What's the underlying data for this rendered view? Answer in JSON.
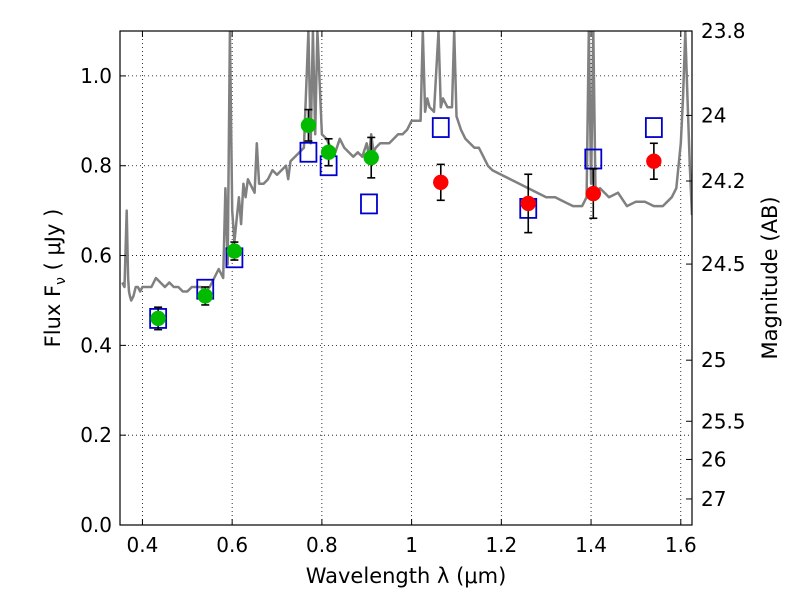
{
  "chart_data": {
    "type": "scatter",
    "title": "",
    "xlabel": "Wavelength  λ (μm)",
    "ylabel": "Flux  F",
    "ylabel_sub": "ν",
    "ylabel_units": "  ( μJy )",
    "y2label": "Magnitude (AB)",
    "xlim": [
      0.35,
      1.625
    ],
    "ylim": [
      0.0,
      1.1
    ],
    "grid": true,
    "x_ticks": [
      {
        "value": 0.4,
        "label": "0.4"
      },
      {
        "value": 0.6,
        "label": "0.6"
      },
      {
        "value": 0.8,
        "label": "0.8"
      },
      {
        "value": 1.0,
        "label": "1"
      },
      {
        "value": 1.2,
        "label": "1.2"
      },
      {
        "value": 1.4,
        "label": "1.4"
      },
      {
        "value": 1.6,
        "label": "1.6"
      }
    ],
    "y_ticks": [
      {
        "value": 0.0,
        "label": "0.0"
      },
      {
        "value": 0.2,
        "label": "0.2"
      },
      {
        "value": 0.4,
        "label": "0.4"
      },
      {
        "value": 0.6,
        "label": "0.6"
      },
      {
        "value": 0.8,
        "label": "0.8"
      },
      {
        "value": 1.0,
        "label": "1.0"
      }
    ],
    "y2_ticks": [
      {
        "flux": 1.1,
        "label": "23.8"
      },
      {
        "flux": 0.912,
        "label": "24"
      },
      {
        "flux": 0.766,
        "label": "24.2"
      },
      {
        "flux": 0.581,
        "label": "24.5"
      },
      {
        "flux": 0.367,
        "label": "25"
      },
      {
        "flux": 0.231,
        "label": "25.5"
      },
      {
        "flux": 0.146,
        "label": "26"
      },
      {
        "flux": 0.058,
        "label": "27"
      }
    ],
    "series": [
      {
        "name": "model spectrum",
        "kind": "line",
        "color": "#808080",
        "x": [
          0.355,
          0.36,
          0.365,
          0.368,
          0.37,
          0.372,
          0.375,
          0.38,
          0.385,
          0.39,
          0.395,
          0.4,
          0.41,
          0.42,
          0.43,
          0.44,
          0.45,
          0.46,
          0.47,
          0.48,
          0.49,
          0.5,
          0.51,
          0.52,
          0.53,
          0.54,
          0.55,
          0.56,
          0.57,
          0.58,
          0.585,
          0.59,
          0.595,
          0.6,
          0.605,
          0.61,
          0.615,
          0.62,
          0.625,
          0.63,
          0.635,
          0.64,
          0.65,
          0.655,
          0.66,
          0.67,
          0.68,
          0.69,
          0.7,
          0.71,
          0.72,
          0.725,
          0.73,
          0.74,
          0.75,
          0.76,
          0.77,
          0.775,
          0.78,
          0.785,
          0.79,
          0.8,
          0.81,
          0.82,
          0.83,
          0.84,
          0.85,
          0.86,
          0.87,
          0.88,
          0.89,
          0.9,
          0.905,
          0.91,
          0.915,
          0.92,
          0.93,
          0.94,
          0.95,
          0.96,
          0.97,
          0.98,
          0.99,
          1.0,
          1.01,
          1.02,
          1.025,
          1.03,
          1.035,
          1.04,
          1.05,
          1.06,
          1.065,
          1.07,
          1.08,
          1.09,
          1.095,
          1.1,
          1.11,
          1.12,
          1.13,
          1.14,
          1.15,
          1.16,
          1.17,
          1.18,
          1.2,
          1.22,
          1.24,
          1.26,
          1.28,
          1.3,
          1.32,
          1.34,
          1.36,
          1.38,
          1.39,
          1.395,
          1.4,
          1.405,
          1.41,
          1.42,
          1.44,
          1.46,
          1.48,
          1.5,
          1.52,
          1.54,
          1.56,
          1.58,
          1.59,
          1.6,
          1.605,
          1.61,
          1.615,
          1.62,
          1.625
        ],
        "y": [
          0.54,
          0.53,
          0.7,
          0.55,
          0.52,
          0.51,
          0.5,
          0.51,
          0.53,
          0.53,
          0.52,
          0.53,
          0.53,
          0.53,
          0.55,
          0.54,
          0.53,
          0.54,
          0.53,
          0.53,
          0.52,
          0.52,
          0.53,
          0.53,
          0.53,
          0.52,
          0.53,
          0.55,
          0.57,
          0.55,
          0.75,
          0.58,
          1.1,
          0.7,
          0.63,
          0.68,
          0.73,
          0.67,
          0.76,
          0.73,
          0.77,
          0.76,
          0.74,
          0.85,
          0.76,
          0.76,
          0.77,
          0.79,
          0.78,
          0.79,
          0.8,
          0.77,
          0.81,
          0.82,
          0.83,
          0.84,
          1.1,
          0.85,
          1.1,
          0.87,
          1.1,
          0.87,
          0.86,
          0.84,
          0.83,
          0.86,
          0.84,
          0.83,
          0.82,
          0.83,
          0.82,
          0.85,
          0.82,
          0.87,
          0.83,
          0.84,
          0.85,
          0.85,
          0.85,
          0.86,
          0.87,
          0.87,
          0.88,
          0.9,
          0.9,
          0.9,
          1.1,
          0.92,
          0.95,
          0.93,
          0.92,
          1.1,
          0.93,
          0.95,
          0.93,
          0.93,
          1.1,
          0.91,
          0.88,
          0.86,
          0.85,
          0.84,
          0.84,
          0.82,
          0.8,
          0.79,
          0.78,
          0.77,
          0.76,
          0.75,
          0.74,
          0.73,
          0.73,
          0.72,
          0.71,
          0.71,
          0.73,
          1.1,
          0.76,
          1.1,
          0.74,
          0.75,
          0.73,
          0.74,
          0.71,
          0.72,
          0.72,
          0.71,
          0.71,
          0.73,
          0.75,
          0.85,
          0.95,
          1.1,
          0.95,
          0.8,
          0.69
        ]
      },
      {
        "name": "model photometry",
        "kind": "open-square",
        "color": "#0000cc",
        "x": [
          0.435,
          0.54,
          0.605,
          0.77,
          0.815,
          0.905,
          1.065,
          1.26,
          1.405,
          1.54
        ],
        "y": [
          0.46,
          0.525,
          0.595,
          0.83,
          0.8,
          0.715,
          0.885,
          0.705,
          0.815,
          0.885
        ]
      },
      {
        "name": "HST photometry",
        "kind": "filled-circle",
        "color": "#00bb00",
        "x": [
          0.435,
          0.54,
          0.605,
          0.77,
          0.815,
          0.91
        ],
        "y": [
          0.46,
          0.51,
          0.61,
          0.89,
          0.83,
          0.818
        ],
        "err": [
          0.025,
          0.02,
          0.02,
          0.035,
          0.03,
          0.045
        ]
      },
      {
        "name": "IR photometry",
        "kind": "filled-circle",
        "color": "#ff0000",
        "x": [
          1.065,
          1.26,
          1.405,
          1.54
        ],
        "y": [
          0.763,
          0.716,
          0.738,
          0.81
        ],
        "err": [
          0.04,
          0.065,
          0.055,
          0.04
        ]
      }
    ]
  }
}
